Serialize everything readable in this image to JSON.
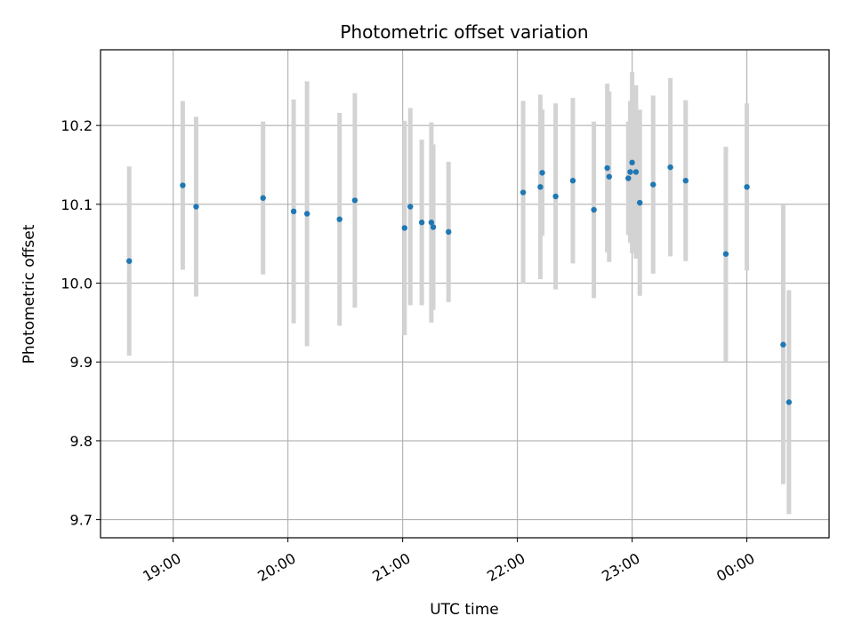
{
  "chart_data": {
    "type": "scatter",
    "title": "Photometric offset variation",
    "xlabel": "UTC time",
    "ylabel": "Photometric offset",
    "grid": true,
    "colors": {
      "points": "#1f77b4",
      "errorbars": "#d3d3d3",
      "grid": "#b0b0b0"
    },
    "x_axis": {
      "type": "time",
      "range": [
        "18:22",
        "00:43"
      ],
      "ticks": [
        "19:00",
        "20:00",
        "21:00",
        "22:00",
        "23:00",
        "00:00"
      ]
    },
    "y_axis": {
      "range": [
        9.677,
        10.296
      ],
      "ticks": [
        "9.7",
        "9.8",
        "9.9",
        "10.0",
        "10.1",
        "10.2"
      ]
    },
    "points": [
      {
        "time": "18:37",
        "y": 10.028,
        "err": 0.12
      },
      {
        "time": "19:05",
        "y": 10.124,
        "err": 0.107
      },
      {
        "time": "19:12",
        "y": 10.097,
        "err": 0.114
      },
      {
        "time": "19:47",
        "y": 10.108,
        "err": 0.097
      },
      {
        "time": "20:03",
        "y": 10.091,
        "err": 0.142
      },
      {
        "time": "20:10",
        "y": 10.088,
        "err": 0.168
      },
      {
        "time": "20:27",
        "y": 10.081,
        "err": 0.135
      },
      {
        "time": "20:35",
        "y": 10.105,
        "err": 0.136
      },
      {
        "time": "21:01",
        "y": 10.07,
        "err": 0.136
      },
      {
        "time": "21:04",
        "y": 10.097,
        "err": 0.125
      },
      {
        "time": "21:10",
        "y": 10.077,
        "err": 0.105
      },
      {
        "time": "21:15",
        "y": 10.077,
        "err": 0.127
      },
      {
        "time": "21:16",
        "y": 10.071,
        "err": 0.105
      },
      {
        "time": "21:24",
        "y": 10.065,
        "err": 0.089
      },
      {
        "time": "22:03",
        "y": 10.115,
        "err": 0.116
      },
      {
        "time": "22:12",
        "y": 10.122,
        "err": 0.117
      },
      {
        "time": "22:13",
        "y": 10.14,
        "err": 0.08
      },
      {
        "time": "22:20",
        "y": 10.11,
        "err": 0.118
      },
      {
        "time": "22:29",
        "y": 10.13,
        "err": 0.105
      },
      {
        "time": "22:40",
        "y": 10.093,
        "err": 0.112
      },
      {
        "time": "22:47",
        "y": 10.146,
        "err": 0.107
      },
      {
        "time": "22:48",
        "y": 10.135,
        "err": 0.108
      },
      {
        "time": "22:58",
        "y": 10.133,
        "err": 0.072
      },
      {
        "time": "22:59",
        "y": 10.141,
        "err": 0.09
      },
      {
        "time": "23:00",
        "y": 10.153,
        "err": 0.115
      },
      {
        "time": "23:02",
        "y": 10.141,
        "err": 0.11
      },
      {
        "time": "23:04",
        "y": 10.102,
        "err": 0.118
      },
      {
        "time": "23:11",
        "y": 10.125,
        "err": 0.113
      },
      {
        "time": "23:20",
        "y": 10.147,
        "err": 0.113
      },
      {
        "time": "23:28",
        "y": 10.13,
        "err": 0.102
      },
      {
        "time": "23:49",
        "y": 10.037,
        "err": 0.136
      },
      {
        "time": "00:00",
        "y": 10.122,
        "err": 0.106
      },
      {
        "time": "00:19",
        "y": 9.922,
        "err": 0.177
      },
      {
        "time": "00:22",
        "y": 9.849,
        "err": 0.142
      }
    ]
  }
}
